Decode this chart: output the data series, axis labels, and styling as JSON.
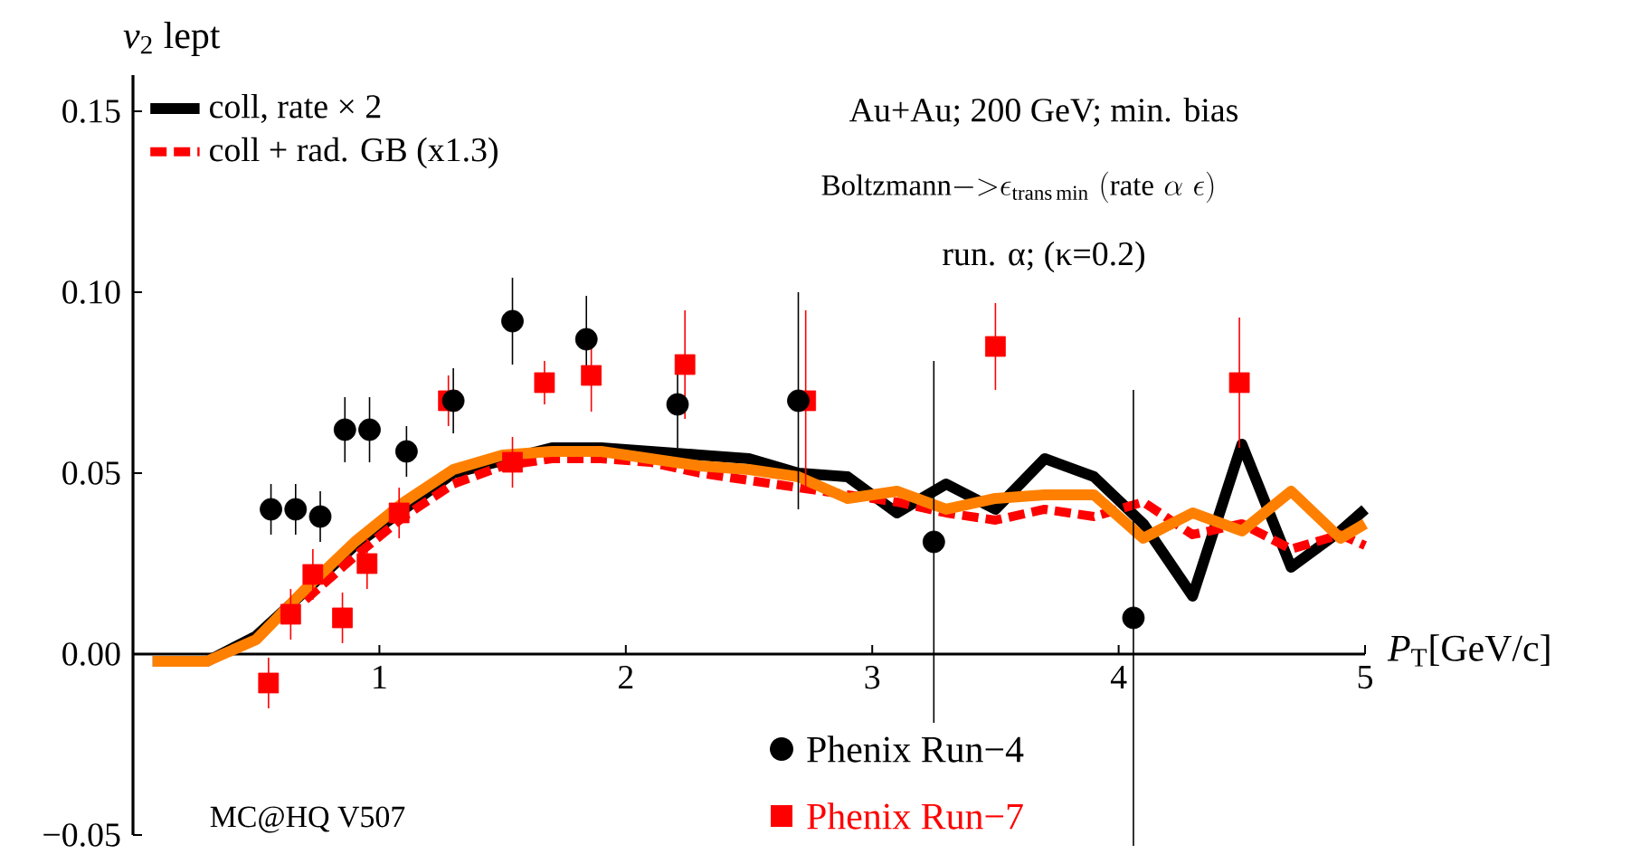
{
  "chart_data": {
    "type": "line",
    "xlabel": "*P*$_{T}$[GeV/c]",
    "ylabel": "*v*$_{2}$ lept",
    "xlim": [
      0,
      5
    ],
    "ylim": [
      -0.05,
      0.16
    ],
    "xticks": [
      1,
      2,
      3,
      4,
      5
    ],
    "yticks": [
      {
        "value": -0.05,
        "label": "−0.05"
      },
      {
        "value": 0,
        "label": "0.00"
      },
      {
        "value": 0.05,
        "label": "0.05"
      },
      {
        "value": 0.1,
        "label": "0.10"
      },
      {
        "value": 0.15,
        "label": "0.15"
      }
    ],
    "legend": "left",
    "annotations": [
      "Au+Au; 200 GeV; min. bias",
      "\\mathrm{Boltzmann}{-}{>}\\epsilon_{\\mathrm{trans\\,min}}\\ (\\mathrm{rate}\\ \\alpha\\ \\epsilon)",
      "run. α; (κ=0.2)",
      "MC@HQ V507"
    ],
    "series": [
      {
        "name": "coll, rate × 2",
        "color": "#000000",
        "x": [
          0.08,
          0.3,
          0.5,
          0.7,
          0.9,
          1.1,
          1.3,
          1.5,
          1.7,
          1.9,
          2.1,
          2.3,
          2.5,
          2.7,
          2.9,
          3.1,
          3.3,
          3.5,
          3.7,
          3.9,
          4.1,
          4.3,
          4.5,
          4.7,
          4.9,
          5.0
        ],
        "values": [
          -0.002,
          -0.002,
          0.005,
          null,
          0.03,
          null,
          0.05,
          null,
          0.057,
          0.057,
          0.056,
          0.055,
          0.054,
          0.05,
          0.049,
          0.039,
          0.047,
          0.04,
          0.054,
          0.049,
          0.036,
          0.016,
          0.058,
          0.024,
          0.034,
          0.04
        ]
      },
      {
        "name": "coll + rad. GB (x1.3)",
        "line_style": "dashed",
        "color": "#ff0000",
        "x": [
          0.7,
          0.9,
          1.1,
          1.3,
          1.5,
          1.7,
          1.9,
          2.1,
          2.3,
          2.5,
          2.7,
          2.9,
          3.1,
          3.3,
          3.5,
          3.7,
          3.9,
          4.1,
          4.3,
          4.5,
          4.7,
          4.9,
          5.0
        ],
        "values": [
          0.015,
          0.027,
          0.038,
          0.047,
          0.052,
          0.054,
          0.054,
          0.053,
          0.05,
          0.048,
          0.046,
          0.044,
          0.042,
          0.039,
          0.037,
          0.04,
          0.038,
          0.042,
          0.033,
          0.036,
          0.029,
          0.033,
          0.03
        ]
      },
      {
        "color": "#ff8000",
        "x": [
          0.08,
          0.3,
          0.5,
          0.7,
          0.9,
          1.1,
          1.3,
          1.5,
          1.7,
          1.9,
          2.1,
          2.3,
          2.5,
          2.7,
          2.9,
          3.1,
          3.3,
          3.5,
          3.7,
          3.9,
          4.1,
          4.3,
          4.5,
          4.7,
          4.9,
          5.0
        ],
        "values": [
          -0.002,
          -0.002,
          0.004,
          0.018,
          0.031,
          0.042,
          0.051,
          0.055,
          0.056,
          0.056,
          0.054,
          0.052,
          0.051,
          0.049,
          0.043,
          0.045,
          0.04,
          0.043,
          0.044,
          0.044,
          0.032,
          0.039,
          0.034,
          0.045,
          0.032,
          0.036
        ]
      },
      {
        "name": "Phenix Run−7",
        "type": "scatter",
        "marker": "square",
        "color": "#ff0000",
        "x": [
          0.55,
          0.64,
          0.73,
          0.85,
          0.95,
          1.08,
          1.28,
          1.54,
          1.67,
          1.86,
          2.24,
          2.73,
          3.5,
          4.49
        ],
        "values": [
          -0.008,
          0.011,
          0.022,
          0.01,
          0.025,
          0.039,
          0.07,
          0.053,
          0.075,
          0.077,
          0.08,
          0.07,
          0.085,
          0.075
        ],
        "errors": [
          0.007,
          0.007,
          0.007,
          0.007,
          0.007,
          0.007,
          0.007,
          0.007,
          0.006,
          0.01,
          0.015,
          0.025,
          0.012,
          0.018
        ]
      },
      {
        "name": "Phenix Run−4",
        "type": "scatter",
        "marker": "circle",
        "color": "#000000",
        "x": [
          0.56,
          0.66,
          0.76,
          0.86,
          0.96,
          1.11,
          1.3,
          1.54,
          1.84,
          2.21,
          2.7,
          3.25,
          4.06
        ],
        "values": [
          0.04,
          0.04,
          0.038,
          0.062,
          0.062,
          0.056,
          0.07,
          0.092,
          0.087,
          0.069,
          0.07,
          0.031,
          0.01
        ],
        "errors": [
          0.007,
          0.007,
          0.007,
          0.009,
          0.009,
          0.007,
          0.009,
          0.012,
          0.012,
          0.012,
          0.03,
          0.05,
          0.063
        ]
      }
    ]
  }
}
